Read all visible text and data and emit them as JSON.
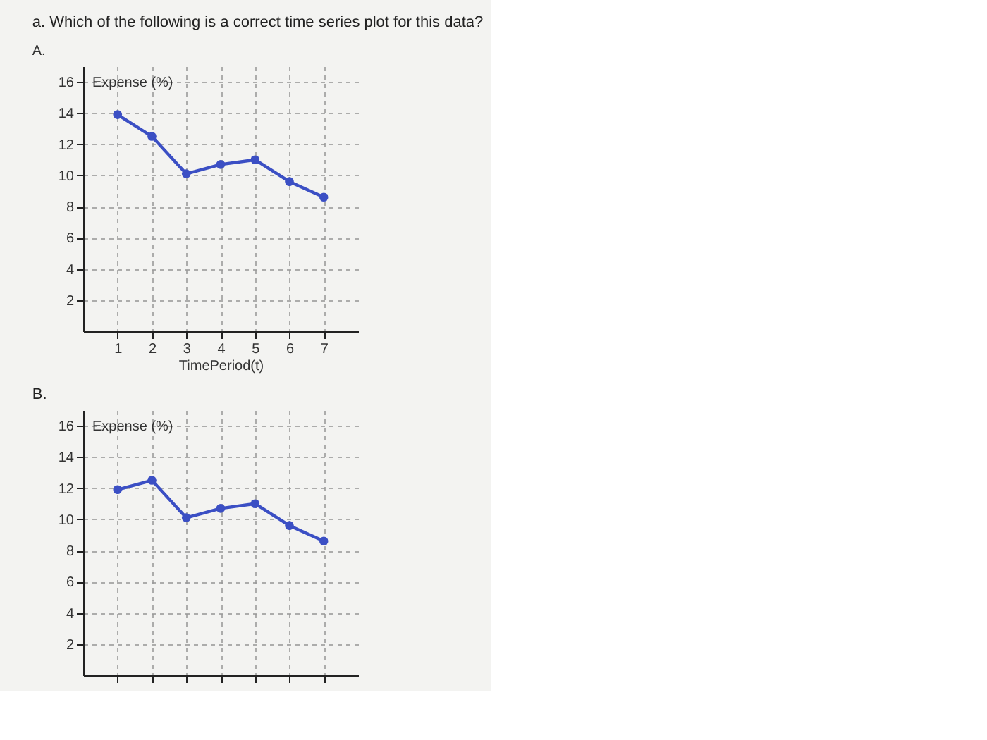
{
  "chart_data": [
    {
      "type": "line",
      "title": "a. Which of the following is a correct time series plot for this data?",
      "subtitle": "A.",
      "xlabel": "TimePeriod(t)",
      "ylabel": "Expense (%)",
      "x": [
        1,
        2,
        3,
        4,
        5,
        6,
        7
      ],
      "series": [
        {
          "color": "#3b4fc4",
          "values": [
            13.9,
            12.5,
            10.1,
            10.7,
            11.0,
            9.6,
            8.6
          ]
        }
      ],
      "xlim": [
        0,
        8
      ],
      "ylim": [
        0,
        17
      ],
      "xticks": [
        1,
        2,
        3,
        4,
        5,
        6,
        7
      ],
      "yticks": [
        2,
        4,
        6,
        8,
        10,
        12,
        14,
        16
      ],
      "grid": true,
      "marker": "circle",
      "line_style": "solid"
    },
    {
      "type": "line",
      "title": "B.",
      "ylabel": "Expense (%)",
      "x": [
        1,
        2,
        3,
        4,
        5,
        6,
        7
      ],
      "series": [
        {
          "color": "#3b4fc4",
          "values": [
            11.9,
            12.5,
            10.1,
            10.7,
            11.0,
            9.6,
            8.6
          ]
        }
      ],
      "xlim": [
        0,
        8
      ],
      "ylim": [
        0,
        17
      ],
      "xticks": [
        1,
        2,
        3,
        4,
        5,
        6,
        7
      ],
      "yticks": [
        2,
        4,
        6,
        8,
        10,
        12,
        14,
        16
      ],
      "grid": true,
      "marker": "circle",
      "line_style": "solid",
      "tick_labels": "y"
    }
  ]
}
